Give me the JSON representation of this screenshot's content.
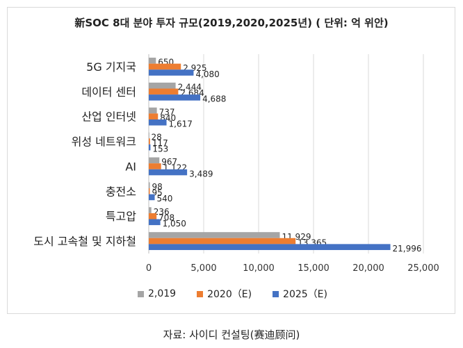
{
  "chart_data": {
    "type": "bar",
    "orientation": "horizontal",
    "title": "新SOC 8대 분야 투자 규모(2019,2020,2025년) ( 단위: 억 위안)",
    "categories": [
      "5G 기지국",
      "데이터 센터",
      "산업 인터넷",
      "위성 네트워크",
      "AI",
      "충전소",
      "특고압",
      "도시 고속철 및 지하철"
    ],
    "series": [
      {
        "name": "2,019",
        "color": "#a5a5a5",
        "values": [
          650,
          2444,
          737,
          28,
          967,
          98,
          236,
          11929
        ]
      },
      {
        "name": "2020（E)",
        "color": "#ed7d31",
        "values": [
          2925,
          2684,
          840,
          117,
          1122,
          95,
          708,
          13365
        ]
      },
      {
        "name": "2025（E)",
        "color": "#4472c4",
        "values": [
          4080,
          4688,
          1617,
          153,
          3489,
          540,
          1050,
          21996
        ]
      }
    ],
    "value_labels": {
      "2,019": [
        "650",
        "2,444",
        "737",
        "28",
        "967",
        "98",
        "236",
        "11,929"
      ],
      "2020（E)": [
        "2,925",
        "2,684",
        "840",
        "117",
        "1,122",
        "95",
        "708",
        "13,365"
      ],
      "2025（E)": [
        "4,080",
        "4,688",
        "1,617",
        "153",
        "3,489",
        "540",
        "1,050",
        "21,996"
      ]
    },
    "xlim": [
      0,
      25000
    ],
    "xticks": [
      "0",
      "5,000",
      "10,000",
      "15,000",
      "20,000",
      "25,000"
    ],
    "grid": "vertical",
    "legend_position": "bottom"
  },
  "source": "자료: 사이디 컨설팅(赛迪顾问)"
}
